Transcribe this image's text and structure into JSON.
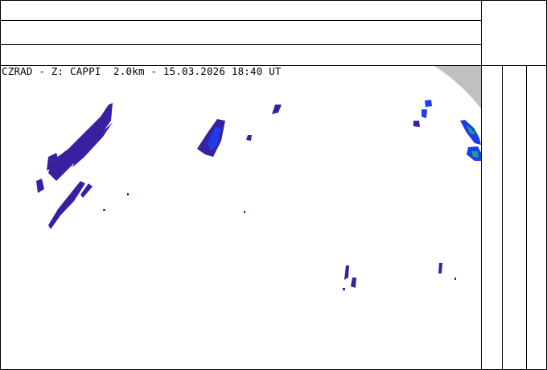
{
  "map": {
    "title": "CZRAD - Z: CAPPI  2.0km - 15.03.2026 18:40 UT",
    "product": "CAPPI",
    "colors": {
      "echo_weak": "#3a1fa0",
      "echo_moderate": "#1a3ee8",
      "echo_strong": "#1f9a9a",
      "echo_peak": "#1c9a2c",
      "out_of_range": "#c0c0c0"
    }
  }
}
